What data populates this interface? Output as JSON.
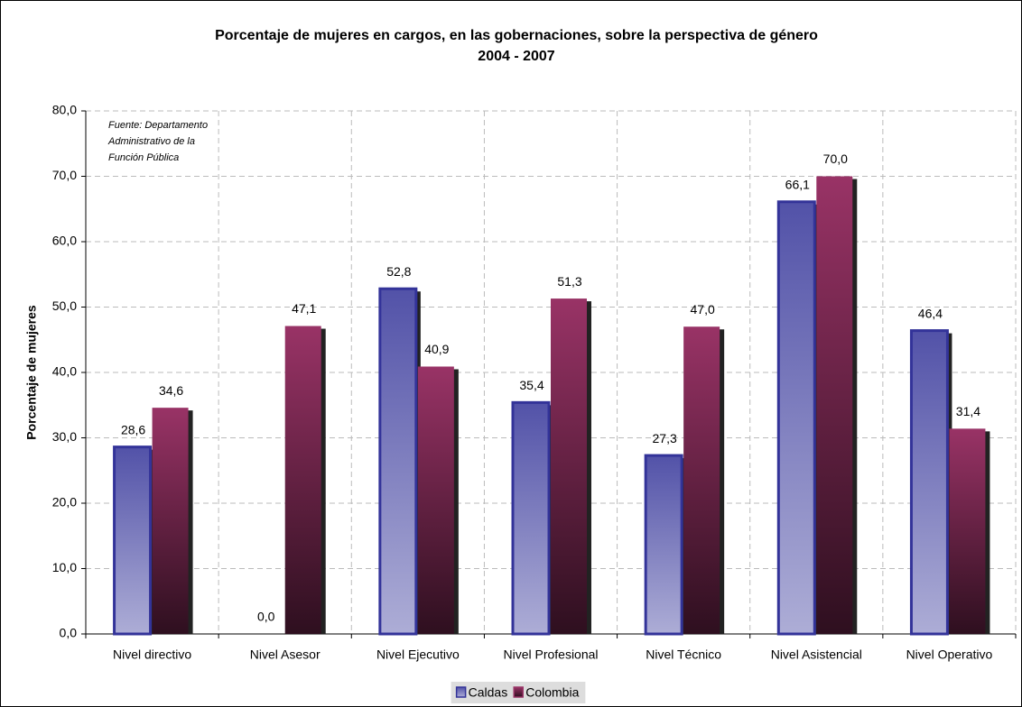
{
  "chart_data": {
    "type": "bar",
    "title": "Porcentaje de mujeres en cargos, en las gobernaciones, sobre la perspectiva de género",
    "subtitle": "2004 - 2007",
    "y_label": "Porcentaje de mujeres",
    "annotation": [
      "Fuente: Departamento",
      "Administrativo de la",
      "Función Pública"
    ],
    "categories": [
      "Nivel directivo",
      "Nivel Asesor",
      "Nivel Ejecutivo",
      "Nivel Profesional",
      "Nivel Técnico",
      "Nivel Asistencial",
      "Nivel Operativo"
    ],
    "series": [
      {
        "name": "Caldas",
        "color": "#333399",
        "values": [
          28.6,
          0,
          52.8,
          35.4,
          27.3,
          66.1,
          46.4
        ],
        "value_labels": [
          "28,6",
          "0,0",
          "52,8",
          "35,4",
          "27,3",
          "66,1",
          "46,4"
        ]
      },
      {
        "name": "Colombia",
        "color": "#993366",
        "values": [
          34.6,
          47.1,
          40.9,
          51.3,
          47.0,
          70.0,
          31.4
        ],
        "value_labels": [
          "34,6",
          "47,1",
          "40,9",
          "51,3",
          "47,0",
          "70,0",
          "31,4"
        ]
      }
    ],
    "ylim": [
      0,
      80
    ],
    "yticks": [
      {
        "value": 0,
        "label": "0,0"
      },
      {
        "value": 10,
        "label": "10,0"
      },
      {
        "value": 20,
        "label": "20,0"
      },
      {
        "value": 30,
        "label": "30,0"
      },
      {
        "value": 40,
        "label": "40,0"
      },
      {
        "value": 50,
        "label": "50,0"
      },
      {
        "value": 60,
        "label": "60,0"
      },
      {
        "value": 70,
        "label": "70,0"
      },
      {
        "value": 80,
        "label": "80,0"
      }
    ],
    "grid": true,
    "legend": "bottom"
  }
}
